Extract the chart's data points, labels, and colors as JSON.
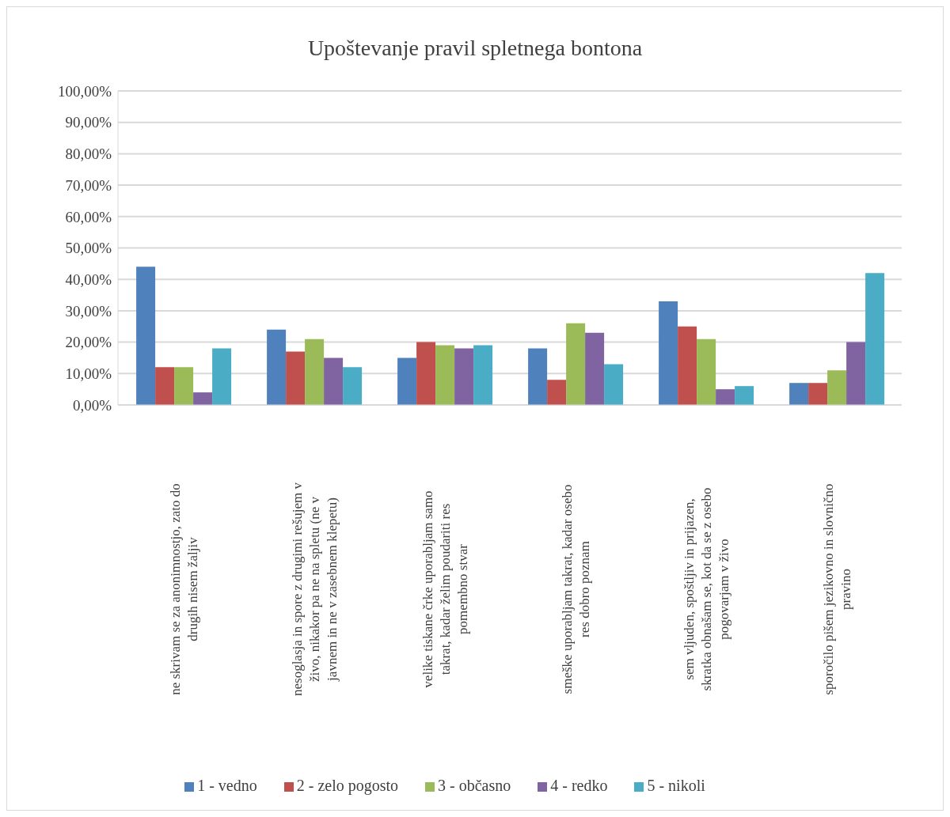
{
  "chart_data": {
    "type": "bar",
    "title": "Upoštevanje pravil spletnega bontona",
    "categories": [
      "ne skrivam se za anonimnostjo, zato do drugih nisem žaljiv",
      "nesoglasja in spore z drugimi rešujem v živo, nikakor pa ne na spletu (ne v javnem in ne v zasebnem klepetu)",
      "velike tiskane črke uporabljam samo takrat, kadar želim poudariti res pomembno stvar",
      "smeške uporabljam takrat, kadar osebo res dobro poznam",
      "sem vljuden, spoštljiv in prijazen, skratka obnašam se, kot da se z osebo pogovarjam v živo",
      "sporočilo pišem jezikovno in slovnično pravino"
    ],
    "series": [
      {
        "name": "1 - vedno",
        "color": "#4f81bd",
        "values": [
          44,
          24,
          15,
          18,
          33,
          7
        ]
      },
      {
        "name": "2 - zelo pogosto",
        "color": "#c0504d",
        "values": [
          12,
          17,
          20,
          8,
          25,
          7
        ]
      },
      {
        "name": "3 - občasno",
        "color": "#9bbb59",
        "values": [
          12,
          21,
          19,
          26,
          21,
          11
        ]
      },
      {
        "name": "4 - redko",
        "color": "#8064a2",
        "values": [
          4,
          15,
          18,
          23,
          5,
          20
        ]
      },
      {
        "name": "5 - nikoli",
        "color": "#4bacc6",
        "values": [
          18,
          12,
          19,
          13,
          6,
          42
        ]
      }
    ],
    "ylim": [
      0,
      100
    ],
    "yticks": [
      {
        "value": 0,
        "label": "0,00%"
      },
      {
        "value": 10,
        "label": "10,00%"
      },
      {
        "value": 20,
        "label": "20,00%"
      },
      {
        "value": 30,
        "label": "30,00%"
      },
      {
        "value": 40,
        "label": "40,00%"
      },
      {
        "value": 50,
        "label": "50,00%"
      },
      {
        "value": 60,
        "label": "60,00%"
      },
      {
        "value": 70,
        "label": "70,00%"
      },
      {
        "value": 80,
        "label": "80,00%"
      },
      {
        "value": 90,
        "label": "90,00%"
      },
      {
        "value": 100,
        "label": "100,00%"
      }
    ],
    "grid": "y",
    "legend": "bottom"
  }
}
